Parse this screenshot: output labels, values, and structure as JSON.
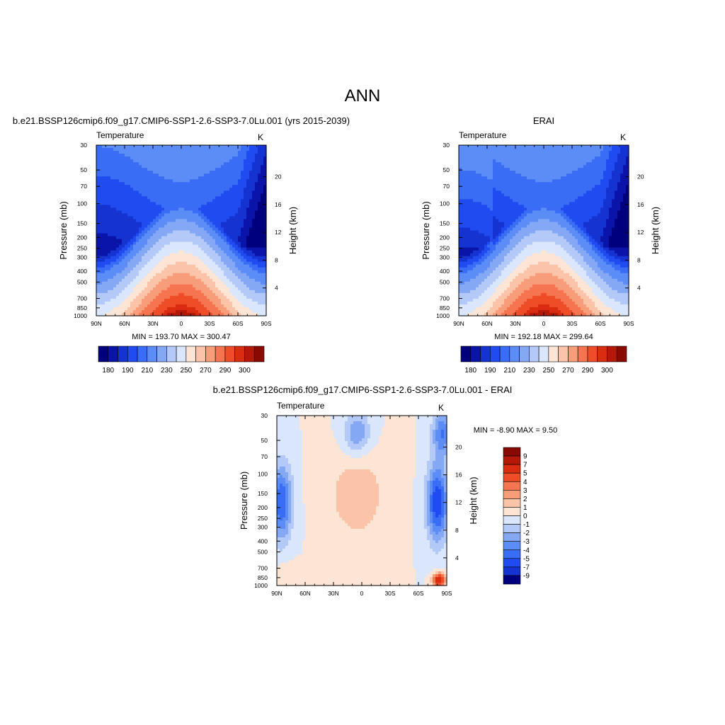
{
  "figure": {
    "title": "ANN",
    "left_title": "b.e21.BSSP126cmip6.f09_g17.CMIP6-SSP1-2.6-SSP3-7.0Lu.001 (yrs 2015-2039)",
    "right_title": "ERAI",
    "diff_title": "b.e21.BSSP126cmip6.f09_g17.CMIP6-SSP1-2.6-SSP3-7.0Lu.001 - ERAI"
  },
  "chart_data": [
    {
      "type": "heatmap",
      "panel": "model",
      "variable_label": "Temperature",
      "units": "K",
      "ylabel": "Pressure (mb)",
      "ylabel_right": "Height (km)",
      "x_ticks": [
        "90N",
        "60N",
        "30N",
        "0",
        "30S",
        "60S",
        "90S"
      ],
      "pressure_ticks": [
        30,
        50,
        70,
        100,
        150,
        200,
        250,
        300,
        400,
        500,
        700,
        850,
        1000
      ],
      "height_ticks": [
        4,
        8,
        12,
        16,
        20
      ],
      "stats": "MIN = 193.70  MAX = 300.47",
      "min": 193.7,
      "max": 300.47,
      "colorbar_levels": [
        180,
        185,
        190,
        195,
        200,
        210,
        220,
        230,
        240,
        250,
        260,
        270,
        280,
        290,
        295,
        300
      ],
      "colorbar_labels": [
        "180",
        "190",
        "210",
        "230",
        "250",
        "270",
        "290",
        "300"
      ],
      "colors": [
        "#00007f",
        "#0a14a8",
        "#1533d1",
        "#1f4bf0",
        "#3a6df5",
        "#5c8cf6",
        "#85a8f5",
        "#b3c9f7",
        "#dae6fb",
        "#fde5d6",
        "#fbc4a8",
        "#f89d7a",
        "#f4754f",
        "#ee4d28",
        "#d92c11",
        "#b41907",
        "#880a02"
      ]
    },
    {
      "type": "heatmap",
      "panel": "obs",
      "variable_label": "Temperature",
      "units": "K",
      "ylabel": "Pressure (mb)",
      "ylabel_right": "Height (km)",
      "x_ticks": [
        "90N",
        "60N",
        "30N",
        "0",
        "30S",
        "60S",
        "90S"
      ],
      "pressure_ticks": [
        30,
        50,
        70,
        100,
        150,
        200,
        250,
        300,
        400,
        500,
        700,
        850,
        1000
      ],
      "height_ticks": [
        4,
        8,
        12,
        16,
        20
      ],
      "stats": "MIN = 192.18  MAX = 299.64",
      "min": 192.18,
      "max": 299.64,
      "colorbar_levels": [
        180,
        185,
        190,
        195,
        200,
        210,
        220,
        230,
        240,
        250,
        260,
        270,
        280,
        290,
        295,
        300
      ],
      "colorbar_labels": [
        "180",
        "190",
        "210",
        "230",
        "250",
        "270",
        "290",
        "300"
      ]
    },
    {
      "type": "heatmap",
      "panel": "difference",
      "variable_label": "Temperature",
      "units": "K",
      "ylabel": "Pressure (mb)",
      "ylabel_right": "Height (km)",
      "x_ticks": [
        "90N",
        "60N",
        "30N",
        "0",
        "30S",
        "60S",
        "90S"
      ],
      "pressure_ticks": [
        30,
        50,
        70,
        100,
        150,
        200,
        250,
        300,
        400,
        500,
        700,
        850,
        1000
      ],
      "height_ticks": [
        4,
        8,
        12,
        16,
        20
      ],
      "stats": "MIN =  -8.90  MAX =   9.50",
      "min": -8.9,
      "max": 9.5,
      "colorbar_labels": [
        "9",
        "7",
        "5",
        "4",
        "3",
        "2",
        "1",
        "0",
        "-1",
        "-2",
        "-3",
        "-4",
        "-5",
        "-7",
        "-9"
      ],
      "colors": [
        "#880a02",
        "#b41907",
        "#d92c11",
        "#ee4d28",
        "#f4754f",
        "#f89d7a",
        "#fbc4a8",
        "#fde5d6",
        "#dae6fb",
        "#b3c9f7",
        "#85a8f5",
        "#5c8cf6",
        "#3a6df5",
        "#1f4bf0",
        "#1533d1",
        "#00007f"
      ]
    }
  ]
}
